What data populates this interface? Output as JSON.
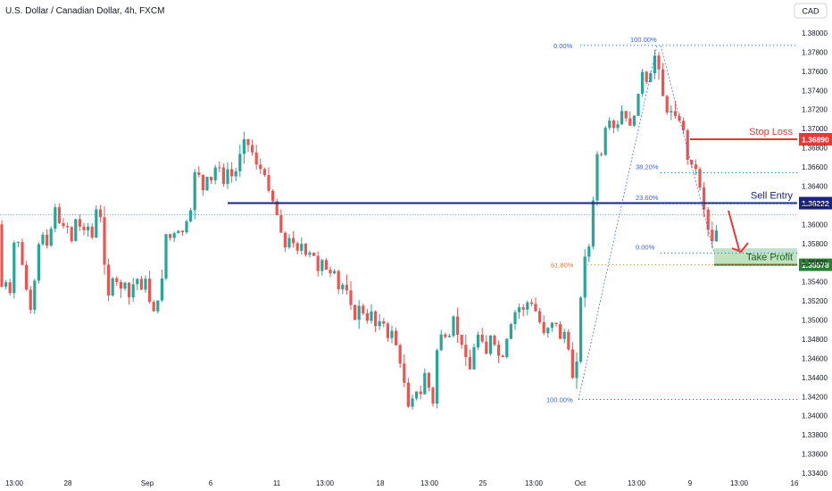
{
  "header": {
    "title": "U.S. Dollar / Canadian Dollar, 4h, FXCM",
    "currency_badge": "CAD"
  },
  "colors": {
    "bull": "#26a69a",
    "bear": "#ef5350",
    "stop_loss": "#e53935",
    "sell_entry": "#1a237e",
    "take_profit": "#2e7d32",
    "fib": "#2962ff",
    "fib_orange": "#e07a3c",
    "arrow": "#e53935"
  },
  "chart_data": {
    "type": "candlestick",
    "y_axis": {
      "min": 1.334,
      "max": 1.381,
      "ticks": [
        "1.38000",
        "1.37800",
        "1.37600",
        "1.37400",
        "1.37200",
        "1.37000",
        "1.36800",
        "1.36600",
        "1.36400",
        "1.36200",
        "1.36000",
        "1.35800",
        "1.35600",
        "1.35400",
        "1.35200",
        "1.35000",
        "1.34800",
        "1.34600",
        "1.34400",
        "1.34200",
        "1.34000",
        "1.33800",
        "1.33600",
        "1.33400"
      ]
    },
    "x_axis": {
      "ticks": [
        "13:00",
        "28",
        "Sep",
        "6",
        "11",
        "13:00",
        "18",
        "13:00",
        "25",
        "13:00",
        "Oct",
        "13:00",
        "9",
        "13:00",
        "16"
      ]
    },
    "price_path": [
      [
        0,
        1.356
      ],
      [
        6,
        1.3525
      ],
      [
        11,
        1.355
      ],
      [
        15,
        1.3515
      ],
      [
        19,
        1.36
      ],
      [
        26,
        1.3565
      ],
      [
        34,
        1.352
      ],
      [
        38,
        1.3505
      ],
      [
        44,
        1.3575
      ],
      [
        50,
        1.359
      ],
      [
        56,
        1.3575
      ],
      [
        62,
        1.361
      ],
      [
        66,
        1.3625
      ],
      [
        70,
        1.359
      ],
      [
        76,
        1.3605
      ],
      [
        82,
        1.358
      ],
      [
        88,
        1.361
      ],
      [
        94,
        1.359
      ],
      [
        100,
        1.36
      ],
      [
        106,
        1.3585
      ],
      [
        112,
        1.363
      ],
      [
        115,
        1.3605
      ],
      [
        119,
        1.356
      ],
      [
        124,
        1.3525
      ],
      [
        130,
        1.355
      ],
      [
        136,
        1.353
      ],
      [
        142,
        1.354
      ],
      [
        148,
        1.352
      ],
      [
        154,
        1.355
      ],
      [
        160,
        1.353
      ],
      [
        166,
        1.3545
      ],
      [
        172,
        1.3505
      ],
      [
        178,
        1.3515
      ],
      [
        184,
        1.3545
      ],
      [
        188,
        1.359
      ],
      [
        194,
        1.3585
      ],
      [
        200,
        1.3595
      ],
      [
        206,
        1.359
      ],
      [
        212,
        1.3605
      ],
      [
        218,
        1.362
      ],
      [
        222,
        1.3675
      ],
      [
        228,
        1.363
      ],
      [
        234,
        1.365
      ],
      [
        240,
        1.3645
      ],
      [
        246,
        1.367
      ],
      [
        252,
        1.364
      ],
      [
        258,
        1.366
      ],
      [
        264,
        1.3645
      ],
      [
        270,
        1.367
      ],
      [
        276,
        1.369
      ],
      [
        282,
        1.368
      ],
      [
        288,
        1.367
      ],
      [
        292,
        1.365
      ],
      [
        296,
        1.3665
      ],
      [
        300,
        1.3645
      ],
      [
        305,
        1.363
      ],
      [
        310,
        1.362
      ],
      [
        316,
        1.3595
      ],
      [
        322,
        1.3575
      ],
      [
        328,
        1.359
      ],
      [
        334,
        1.357
      ],
      [
        340,
        1.358
      ],
      [
        346,
        1.3565
      ],
      [
        352,
        1.3575
      ],
      [
        358,
        1.355
      ],
      [
        364,
        1.3565
      ],
      [
        370,
        1.3545
      ],
      [
        376,
        1.3555
      ],
      [
        382,
        1.353
      ],
      [
        388,
        1.354
      ],
      [
        394,
        1.352
      ],
      [
        400,
        1.35
      ],
      [
        406,
        1.352
      ],
      [
        412,
        1.3495
      ],
      [
        418,
        1.351
      ],
      [
        424,
        1.349
      ],
      [
        430,
        1.3505
      ],
      [
        436,
        1.348
      ],
      [
        442,
        1.349
      ],
      [
        448,
        1.3465
      ],
      [
        454,
        1.344
      ],
      [
        458,
        1.342
      ],
      [
        462,
        1.3395
      ],
      [
        466,
        1.3435
      ],
      [
        472,
        1.3415
      ],
      [
        478,
        1.3445
      ],
      [
        484,
        1.3425
      ],
      [
        488,
        1.341
      ],
      [
        492,
        1.347
      ],
      [
        498,
        1.349
      ],
      [
        504,
        1.3475
      ],
      [
        510,
        1.3505
      ],
      [
        516,
        1.348
      ],
      [
        522,
        1.347
      ],
      [
        528,
        1.3445
      ],
      [
        534,
        1.3475
      ],
      [
        540,
        1.349
      ],
      [
        546,
        1.346
      ],
      [
        552,
        1.3485
      ],
      [
        558,
        1.347
      ],
      [
        564,
        1.3455
      ],
      [
        570,
        1.348
      ],
      [
        576,
        1.35
      ],
      [
        582,
        1.3515
      ],
      [
        588,
        1.351
      ],
      [
        594,
        1.352
      ],
      [
        600,
        1.3515
      ],
      [
        606,
        1.35
      ],
      [
        612,
        1.3485
      ],
      [
        618,
        1.3495
      ],
      [
        624,
        1.35
      ],
      [
        630,
        1.348
      ],
      [
        636,
        1.349
      ],
      [
        642,
        1.345
      ],
      [
        646,
        1.3425
      ],
      [
        650,
        1.348
      ],
      [
        654,
        1.354
      ],
      [
        658,
        1.357
      ],
      [
        664,
        1.358
      ],
      [
        670,
        1.368
      ],
      [
        674,
        1.366
      ],
      [
        680,
        1.37
      ],
      [
        686,
        1.371
      ],
      [
        692,
        1.3695
      ],
      [
        698,
        1.372
      ],
      [
        704,
        1.371
      ],
      [
        710,
        1.37
      ],
      [
        716,
        1.373
      ],
      [
        722,
        1.376
      ],
      [
        728,
        1.3745
      ],
      [
        734,
        1.377
      ],
      [
        738,
        1.3785
      ],
      [
        742,
        1.3745
      ],
      [
        746,
        1.373
      ],
      [
        750,
        1.3715
      ],
      [
        756,
        1.372
      ],
      [
        762,
        1.3705
      ],
      [
        766,
        1.3715
      ],
      [
        770,
        1.368
      ],
      [
        774,
        1.366
      ],
      [
        780,
        1.3665
      ],
      [
        786,
        1.364
      ],
      [
        790,
        1.362
      ],
      [
        794,
        1.36
      ],
      [
        798,
        1.3585
      ],
      [
        802,
        1.358
      ],
      [
        806,
        1.36
      ]
    ],
    "levels": [
      {
        "name": "Stop Loss",
        "price": 1.3689,
        "label": "1.36890",
        "x_start": 773,
        "color": "stop_loss"
      },
      {
        "name": "Sell Entry",
        "price": 1.36222,
        "label": "1.36222",
        "x_start": 255,
        "color": "sell_entry"
      },
      {
        "name": "Take Profit",
        "price": 1.35578,
        "label": "1.35578",
        "x_start": 800,
        "color": "take_profit"
      }
    ],
    "current_price": 1.361,
    "take_profit_zone": {
      "from": 1.3557,
      "to": 1.3575
    },
    "fib_top": [
      {
        "label": "0.00%",
        "price": 1.3787
      },
      {
        "label": "100.00%",
        "price": 1.3787
      },
      {
        "label": "38.20%",
        "price": 1.3654
      },
      {
        "label": "23.60%",
        "price": 1.3622
      },
      {
        "label": "0.00%",
        "price": 1.357
      }
    ],
    "fib_bottom": [
      {
        "label": "61.80%",
        "price": 1.35578
      },
      {
        "label": "100.00%",
        "price": 1.3417
      }
    ]
  }
}
